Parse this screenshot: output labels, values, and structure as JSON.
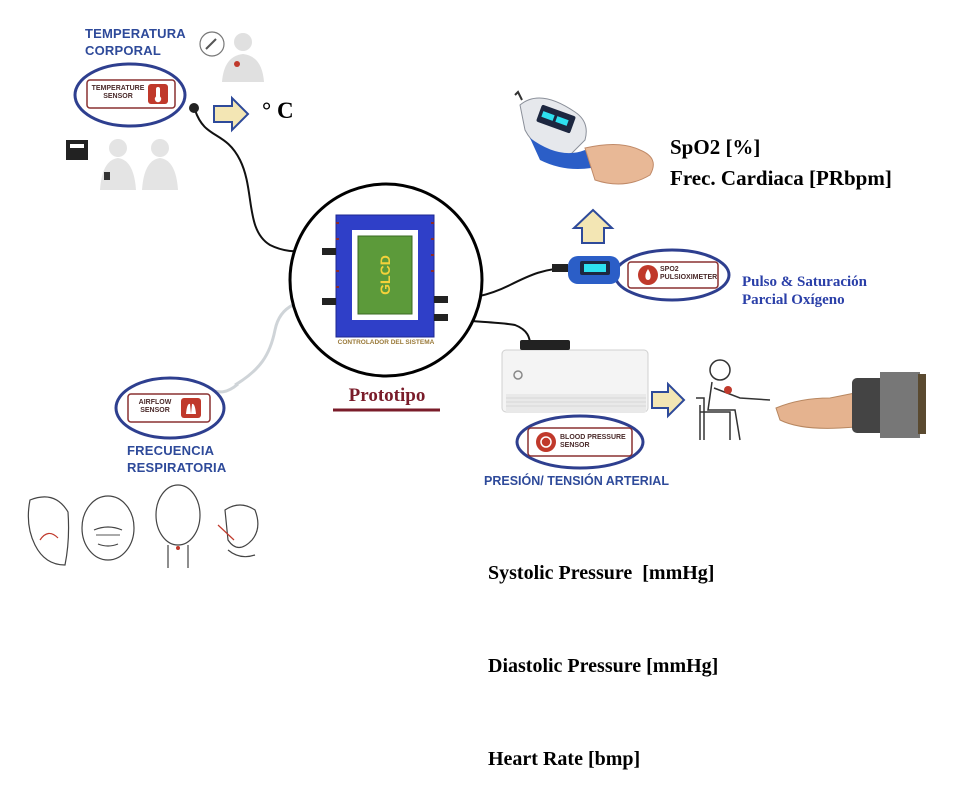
{
  "temperature": {
    "title_line1": "TEMPERATURA",
    "title_line2": "CORPORAL",
    "sensor_line1": "TEMPERATURE",
    "sensor_line2": "SENSOR",
    "unit": "° C"
  },
  "pulse_ox": {
    "sensor_line1": "SPO2",
    "sensor_line2": "PULSIOXIMETER",
    "description_line1": "Pulso & Saturación",
    "description_line2": "Parcial Oxígeno",
    "reading_line1": "SpO2 [%]",
    "reading_line2": "Frec. Cardiaca [PRbpm]"
  },
  "controller": {
    "display_label": "GLCD",
    "caption": "CONTROLADOR DEL SISTEMA",
    "prototype_label": "Prototipo"
  },
  "airflow": {
    "sensor_line1": "AIRFLOW",
    "sensor_line2": "SENSOR",
    "title_line1": "FRECUENCIA",
    "title_line2": "RESPIRATORIA"
  },
  "blood_pressure": {
    "sensor_line1": "BLOOD PRESSURE",
    "sensor_line2": "SENSOR",
    "title": "PRESIÓN/ TENSIÓN ARTERIAL",
    "readings": [
      "Systolic Pressure  [mmHg]",
      "Diastolic Pressure [mmHg]",
      "Heart Rate [bmp]"
    ]
  },
  "colors": {
    "accent_blue": "#2e4a9a",
    "controller_blue": "#2f3fc8",
    "display_green": "#5c9a3a",
    "sensor_red": "#c0392b",
    "arrow_fill": "#f3e6b4"
  }
}
